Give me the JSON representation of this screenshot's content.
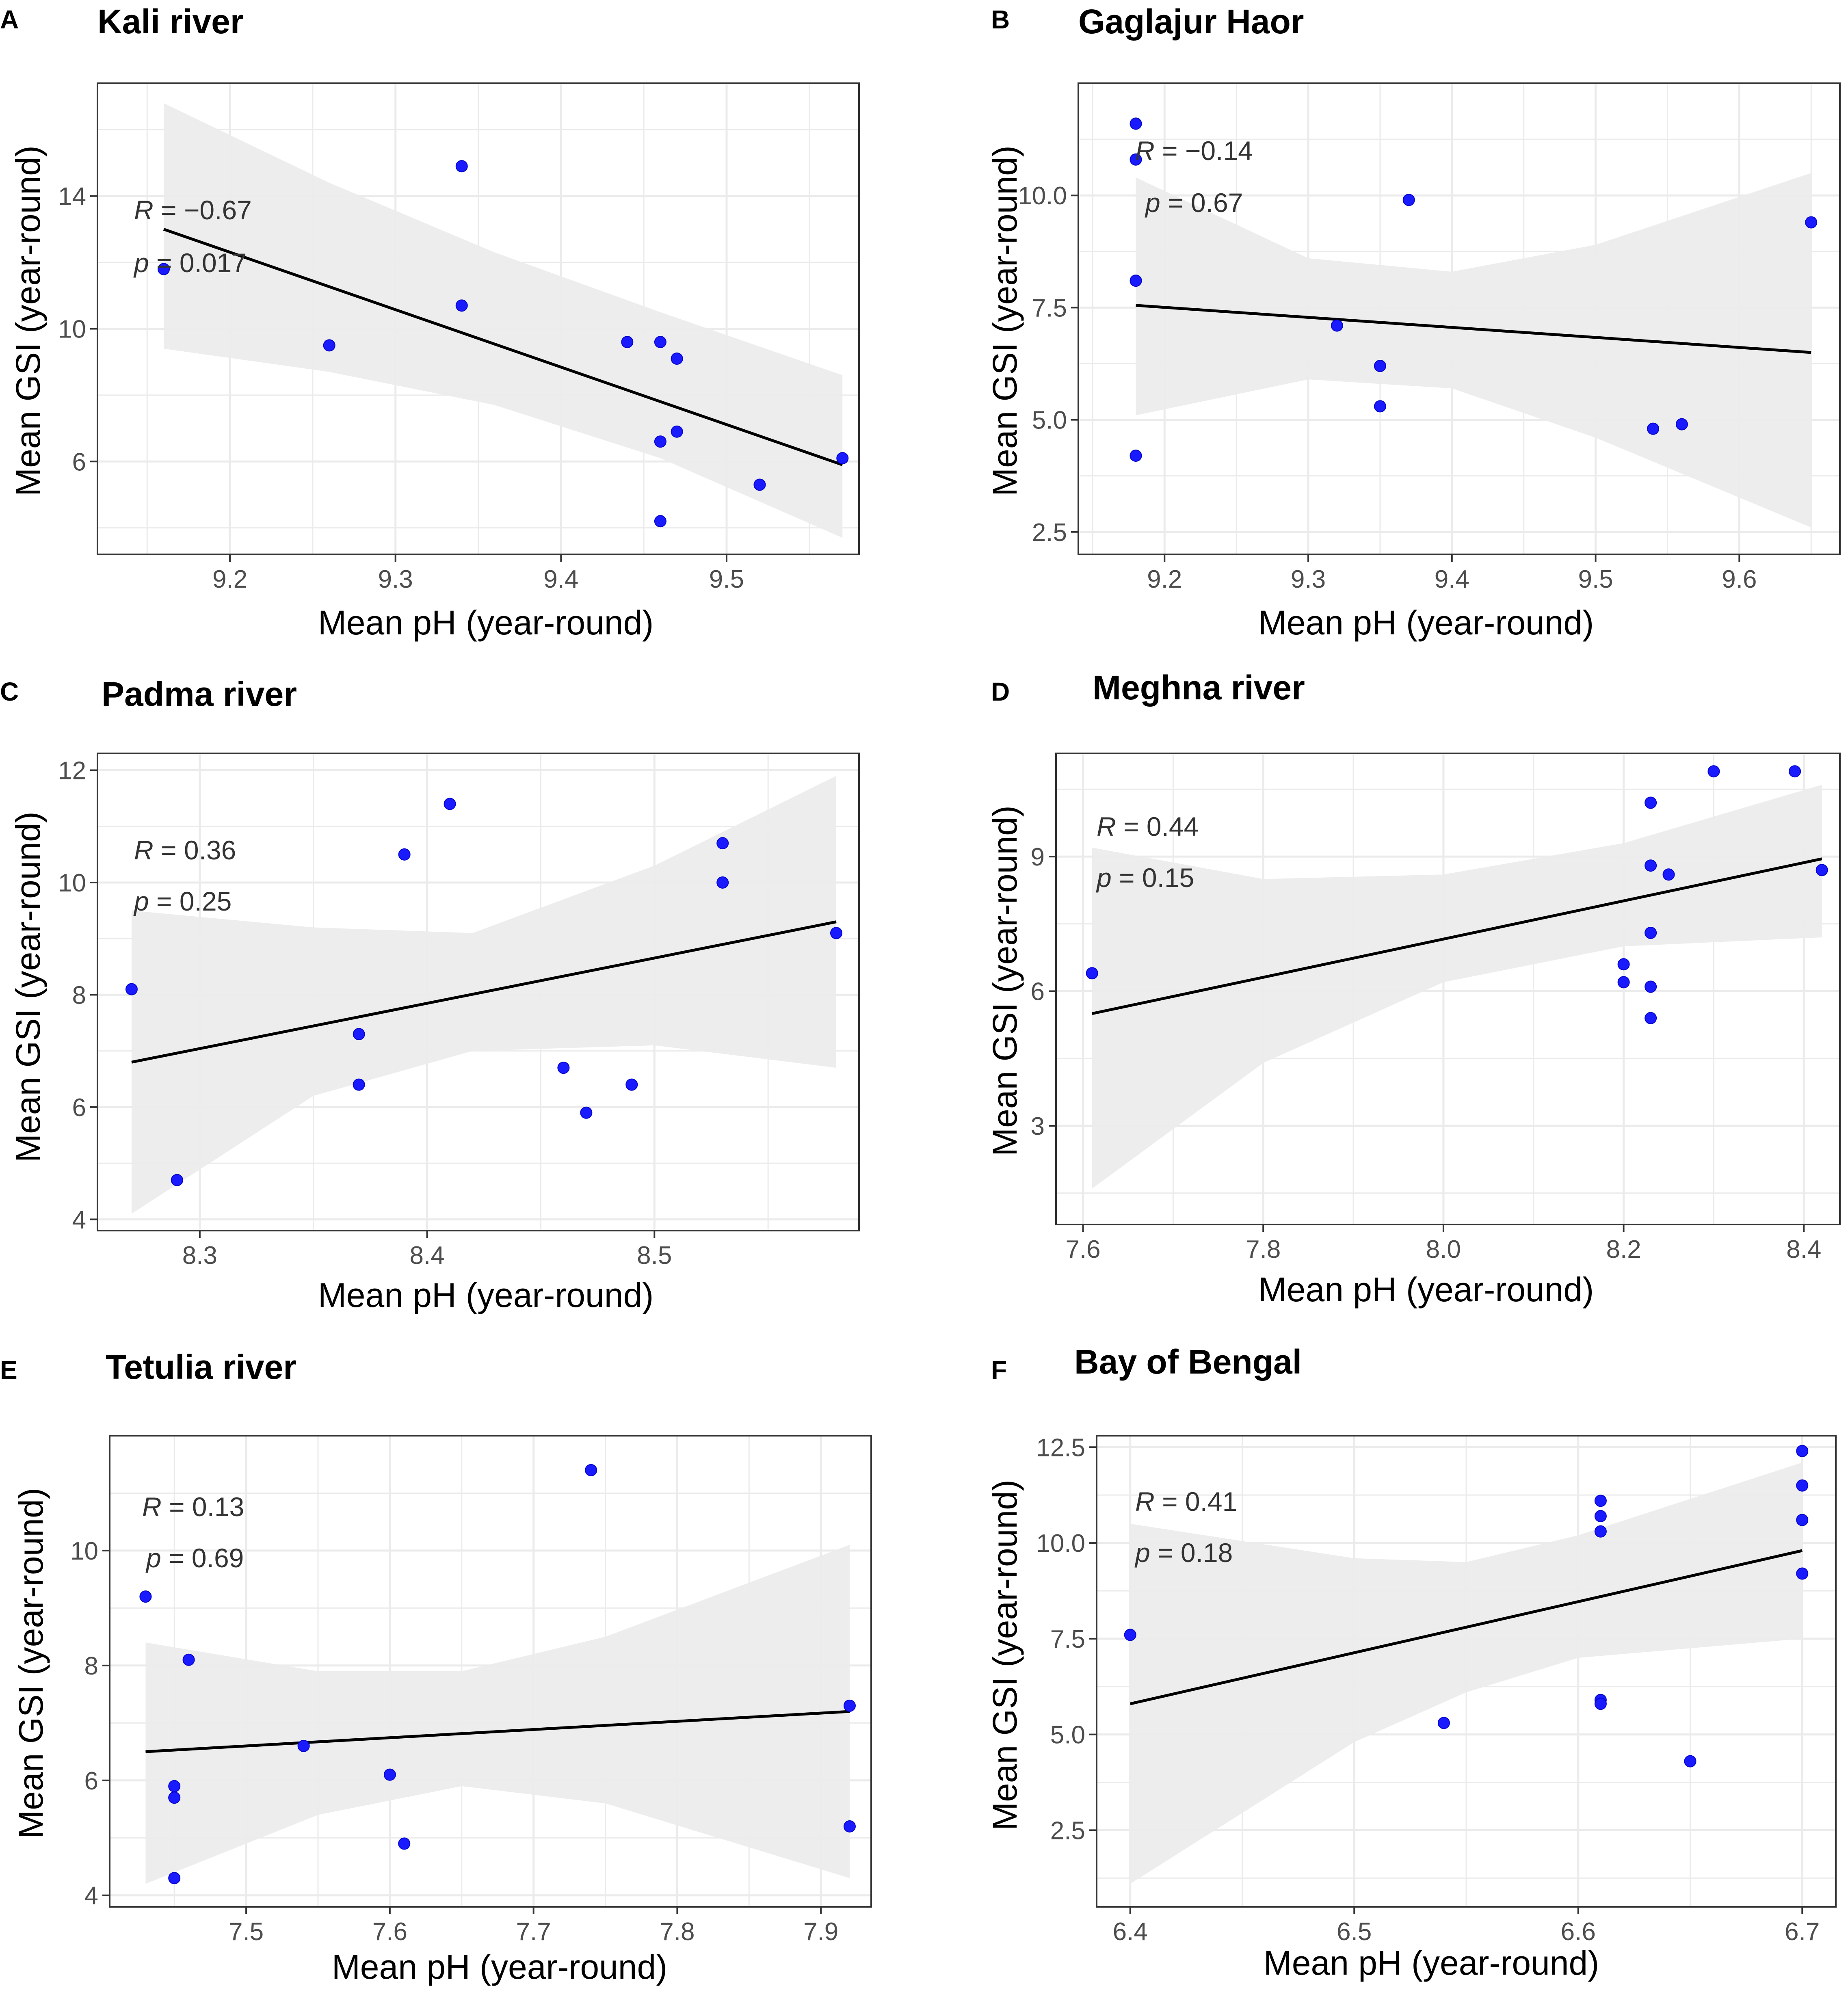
{
  "figure": {
    "background": "#ffffff"
  },
  "style": {
    "point_color": "#1a1aff",
    "point_edge": "#0000cc",
    "ribbon_color": "#ebebeb",
    "line_color": "#000000",
    "grid_color": "#ebebeb",
    "border_color": "#333333"
  },
  "chart_data": [
    {
      "panel": "A",
      "title": "Kali river",
      "type": "scatter",
      "xlabel": "Mean pH (year-round)",
      "ylabel": "Mean GSI (year-round)",
      "xlim": [
        9.12,
        9.58
      ],
      "ylim": [
        3.2,
        17.4
      ],
      "xticks": [
        9.2,
        9.3,
        9.4,
        9.5
      ],
      "xtick_labels": [
        "9.2",
        "9.3",
        "9.4",
        "9.5"
      ],
      "yticks": [
        6,
        10,
        14
      ],
      "ytick_labels": [
        "6",
        "10",
        "14"
      ],
      "stats": {
        "r_symbol": "R",
        "r_value": " = −0.67",
        "p_symbol": "p",
        "p_value": " = 0.017"
      },
      "x": [
        9.16,
        9.26,
        9.34,
        9.34,
        9.44,
        9.46,
        9.47,
        9.46,
        9.47,
        9.52,
        9.57,
        9.46
      ],
      "y": [
        11.8,
        9.5,
        14.9,
        10.7,
        9.6,
        9.6,
        9.1,
        6.6,
        6.9,
        5.3,
        6.1,
        4.2
      ],
      "fit": {
        "x": [
          9.16,
          9.57
        ],
        "y": [
          13.0,
          5.9
        ]
      },
      "band": {
        "x": [
          9.16,
          9.26,
          9.36,
          9.46,
          9.57
        ],
        "lower": [
          9.4,
          8.7,
          7.7,
          6.1,
          3.7
        ],
        "upper": [
          16.8,
          14.4,
          12.3,
          10.5,
          8.6
        ]
      }
    },
    {
      "panel": "B",
      "title": "Gaglajur Haor",
      "type": "scatter",
      "xlabel": "Mean pH (year-round)",
      "ylabel": "Mean GSI (year-round)",
      "xlim": [
        9.14,
        9.67
      ],
      "ylim": [
        2.0,
        12.5
      ],
      "xticks": [
        9.2,
        9.3,
        9.4,
        9.5,
        9.6
      ],
      "xtick_labels": [
        "9.2",
        "9.3",
        "9.4",
        "9.5",
        "9.6"
      ],
      "yticks": [
        2.5,
        5.0,
        7.5,
        10.0
      ],
      "ytick_labels": [
        "2.5",
        "5.0",
        "7.5",
        "10.0"
      ],
      "stats": {
        "r_symbol": "R",
        "r_value": " = −0.14",
        "p_symbol": "p",
        "p_value": " = 0.67"
      },
      "x": [
        9.18,
        9.18,
        9.18,
        9.18,
        9.32,
        9.35,
        9.35,
        9.37,
        9.54,
        9.56,
        9.65
      ],
      "y": [
        11.6,
        10.8,
        8.1,
        4.2,
        7.1,
        6.2,
        5.3,
        9.9,
        4.8,
        4.9,
        9.4
      ],
      "fit": {
        "x": [
          9.18,
          9.65
        ],
        "y": [
          7.55,
          6.5
        ]
      },
      "band": {
        "x": [
          9.18,
          9.3,
          9.4,
          9.5,
          9.65
        ],
        "lower": [
          5.1,
          5.9,
          5.7,
          4.6,
          2.6
        ],
        "upper": [
          10.4,
          8.6,
          8.3,
          8.9,
          10.5
        ]
      }
    },
    {
      "panel": "C",
      "title": "Padma river",
      "type": "scatter",
      "xlabel": "Mean pH (year-round)",
      "ylabel": "Mean GSI (year-round)",
      "xlim": [
        8.255,
        8.59
      ],
      "ylim": [
        3.8,
        12.3
      ],
      "xticks": [
        8.3,
        8.4,
        8.5
      ],
      "xtick_labels": [
        "8.3",
        "8.4",
        "8.5"
      ],
      "yticks": [
        4,
        6,
        8,
        10,
        12
      ],
      "ytick_labels": [
        "4",
        "6",
        "8",
        "10",
        "12"
      ],
      "stats": {
        "r_symbol": "R",
        "r_value": " = 0.36",
        "p_symbol": "p",
        "p_value": " = 0.25"
      },
      "x": [
        8.27,
        8.29,
        8.37,
        8.37,
        8.39,
        8.41,
        8.46,
        8.47,
        8.49,
        8.53,
        8.53,
        8.58
      ],
      "y": [
        8.1,
        4.7,
        7.3,
        6.4,
        10.5,
        11.4,
        6.7,
        5.9,
        6.4,
        10.7,
        10.0,
        9.1
      ],
      "fit": {
        "x": [
          8.27,
          8.58
        ],
        "y": [
          6.8,
          9.3
        ]
      },
      "band": {
        "x": [
          8.27,
          8.35,
          8.42,
          8.5,
          8.58
        ],
        "lower": [
          4.1,
          6.2,
          7.0,
          7.1,
          6.7
        ],
        "upper": [
          9.5,
          9.2,
          9.1,
          10.3,
          11.9
        ]
      }
    },
    {
      "panel": "D",
      "title": "Meghna river",
      "type": "scatter",
      "xlabel": "Mean pH (year-round)",
      "ylabel": "Mean GSI (year-round)",
      "xlim": [
        7.57,
        8.44
      ],
      "ylim": [
        0.8,
        11.3
      ],
      "xticks": [
        7.6,
        7.8,
        8.0,
        8.2,
        8.4
      ],
      "xtick_labels": [
        "7.6",
        "7.8",
        "8.0",
        "8.2",
        "8.4"
      ],
      "yticks": [
        3,
        6,
        9
      ],
      "ytick_labels": [
        "3",
        "6",
        "9"
      ],
      "stats": {
        "r_symbol": "R",
        "r_value": " = 0.44",
        "p_symbol": "p",
        "p_value": " = 0.15"
      },
      "x": [
        7.61,
        8.2,
        8.2,
        8.23,
        8.23,
        8.23,
        8.23,
        8.23,
        8.25,
        8.3,
        8.39,
        8.42
      ],
      "y": [
        6.4,
        6.6,
        6.2,
        5.4,
        6.1,
        7.3,
        8.8,
        10.2,
        8.6,
        10.9,
        10.9,
        8.7
      ],
      "fit": {
        "x": [
          7.61,
          8.42
        ],
        "y": [
          5.5,
          8.95
        ]
      },
      "band": {
        "x": [
          7.61,
          7.8,
          8.0,
          8.2,
          8.42
        ],
        "lower": [
          1.6,
          4.4,
          6.2,
          7.0,
          7.2
        ],
        "upper": [
          9.2,
          8.5,
          8.6,
          9.3,
          10.6
        ]
      }
    },
    {
      "panel": "E",
      "title": "Tetulia river",
      "type": "scatter",
      "xlabel": "Mean pH (year-round)",
      "ylabel": "Mean GSI (year-round)",
      "xlim": [
        7.405,
        7.935
      ],
      "ylim": [
        3.8,
        12.0
      ],
      "xticks": [
        7.5,
        7.6,
        7.7,
        7.8,
        7.9
      ],
      "xtick_labels": [
        "7.5",
        "7.6",
        "7.7",
        "7.8",
        "7.9"
      ],
      "yticks": [
        4,
        6,
        8,
        10
      ],
      "ytick_labels": [
        "4",
        "6",
        "8",
        "10"
      ],
      "stats": {
        "r_symbol": "R",
        "r_value": " = 0.13",
        "p_symbol": "p",
        "p_value": " = 0.69"
      },
      "x": [
        7.43,
        7.45,
        7.45,
        7.45,
        7.46,
        7.54,
        7.6,
        7.61,
        7.74,
        7.92,
        7.92
      ],
      "y": [
        9.2,
        5.9,
        5.7,
        4.3,
        8.1,
        6.6,
        6.1,
        4.9,
        11.4,
        7.3,
        5.2
      ],
      "fit": {
        "x": [
          7.43,
          7.92
        ],
        "y": [
          6.5,
          7.2
        ]
      },
      "band": {
        "x": [
          7.43,
          7.55,
          7.65,
          7.75,
          7.92
        ],
        "lower": [
          4.2,
          5.4,
          5.9,
          5.6,
          4.3
        ],
        "upper": [
          8.4,
          7.9,
          7.9,
          8.5,
          10.1
        ]
      }
    },
    {
      "panel": "F",
      "title": "Bay of Bengal",
      "type": "scatter",
      "xlabel": "Mean pH (year-round)",
      "ylabel": "Mean GSI (year-round)",
      "xlim": [
        6.385,
        6.715
      ],
      "ylim": [
        0.5,
        12.8
      ],
      "xticks": [
        6.4,
        6.5,
        6.6,
        6.7
      ],
      "xtick_labels": [
        "6.4",
        "6.5",
        "6.6",
        "6.7"
      ],
      "yticks": [
        2.5,
        5.0,
        7.5,
        10.0,
        12.5
      ],
      "ytick_labels": [
        "2.5",
        "5.0",
        "7.5",
        "10.0",
        "12.5"
      ],
      "stats": {
        "r_symbol": "R",
        "r_value": " = 0.41",
        "p_symbol": "p",
        "p_value": " = 0.18"
      },
      "x": [
        6.4,
        6.54,
        6.61,
        6.61,
        6.61,
        6.61,
        6.61,
        6.65,
        6.7,
        6.7,
        6.7,
        6.7
      ],
      "y": [
        7.6,
        5.3,
        11.1,
        10.7,
        10.3,
        5.9,
        5.8,
        4.3,
        12.4,
        11.5,
        10.6,
        9.2
      ],
      "fit": {
        "x": [
          6.4,
          6.7
        ],
        "y": [
          5.8,
          9.8
        ]
      },
      "band": {
        "x": [
          6.4,
          6.5,
          6.55,
          6.6,
          6.7
        ],
        "lower": [
          1.1,
          4.8,
          6.1,
          7.0,
          7.5
        ],
        "upper": [
          10.5,
          9.6,
          9.5,
          10.2,
          12.1
        ]
      }
    }
  ]
}
